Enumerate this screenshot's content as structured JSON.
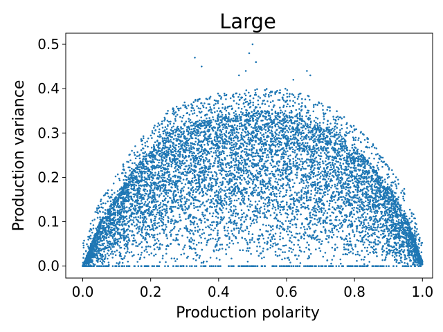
{
  "chart_data": {
    "type": "scatter",
    "title": "Large",
    "xlabel": "Production polarity",
    "ylabel": "Production variance",
    "xlim": [
      -0.05,
      1.03
    ],
    "ylim": [
      -0.027,
      0.525
    ],
    "xticks": [
      0.0,
      0.2,
      0.4,
      0.6,
      0.8,
      1.0
    ],
    "xtick_labels": [
      "0.0",
      "0.2",
      "0.4",
      "0.6",
      "0.8",
      "1.0"
    ],
    "yticks": [
      0.0,
      0.1,
      0.2,
      0.3,
      0.4,
      0.5
    ],
    "ytick_labels": [
      "0.0",
      "0.1",
      "0.2",
      "0.3",
      "0.4",
      "0.5"
    ],
    "grid": false,
    "legend": "none",
    "marker_color": "#1f77b4",
    "series": [
      {
        "values_note_x": [
          0.0,
          0.05,
          0.1,
          0.15,
          0.2,
          0.25,
          0.3,
          0.35,
          0.4,
          0.45,
          0.5,
          0.55,
          0.6,
          0.65,
          0.7,
          0.75,
          0.8,
          0.85,
          0.9,
          0.95,
          1.0
        ],
        "upper_envelope_y": [
          0.0,
          0.1,
          0.16,
          0.22,
          0.26,
          0.3,
          0.32,
          0.33,
          0.34,
          0.34,
          0.35,
          0.35,
          0.35,
          0.34,
          0.32,
          0.3,
          0.27,
          0.23,
          0.18,
          0.12,
          0.01
        ],
        "baseline_y": 0.0,
        "outliers": [
          {
            "x": 0.33,
            "y": 0.47
          },
          {
            "x": 0.35,
            "y": 0.45
          },
          {
            "x": 0.49,
            "y": 0.48
          },
          {
            "x": 0.5,
            "y": 0.5
          },
          {
            "x": 0.51,
            "y": 0.46
          },
          {
            "x": 0.48,
            "y": 0.44
          },
          {
            "x": 0.66,
            "y": 0.44
          },
          {
            "x": 0.67,
            "y": 0.43
          },
          {
            "x": 0.62,
            "y": 0.42
          },
          {
            "x": 0.46,
            "y": 0.43
          }
        ]
      }
    ]
  }
}
